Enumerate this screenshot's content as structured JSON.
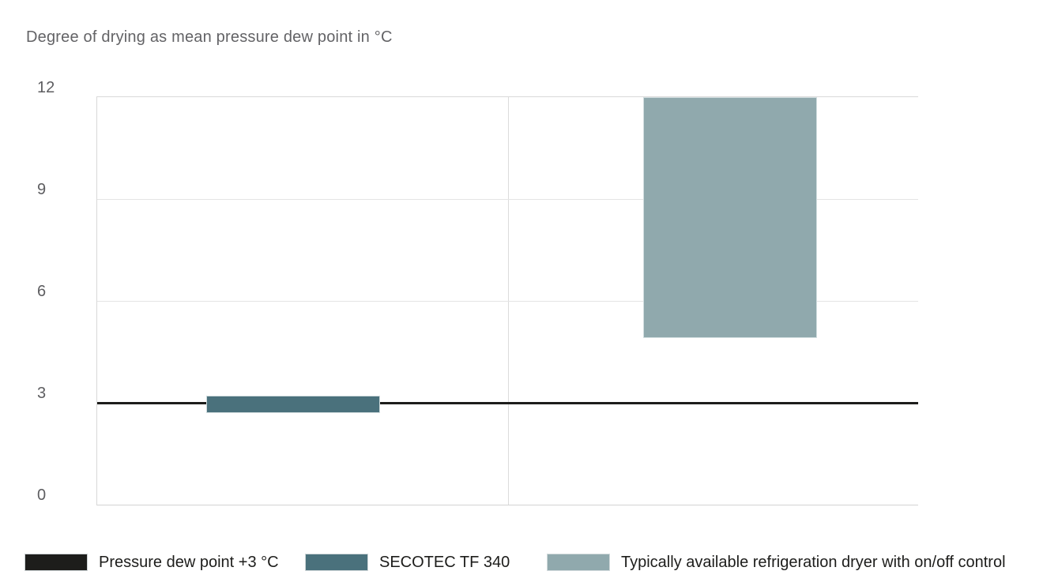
{
  "page": {
    "background": "#ffffff"
  },
  "chart_data": {
    "type": "bar",
    "subtype": "floating-range-bars-with-reference-line",
    "title": "Degree of drying as mean pressure dew point in °C",
    "xlabel": "",
    "ylabel": "mean pressure dew point in °C",
    "ylim": [
      0,
      12
    ],
    "yticks": [
      12,
      9,
      6,
      3,
      0
    ],
    "gridlines_at": [
      9,
      6,
      3
    ],
    "grid": true,
    "categories": [
      "SECOTEC TF 340",
      "Typically available refrigeration dryer with on/off control"
    ],
    "reference_line": {
      "label": "Pressure dew point +3 °C",
      "value": 3,
      "color": "#1d1d1b"
    },
    "series": [
      {
        "name": "SECOTEC TF 340",
        "column": 1,
        "low": 2.7,
        "high": 3.2,
        "color": "#4a717c"
      },
      {
        "name": "Typically available refrigeration dryer with on/off control",
        "column": 2,
        "low": 4.9,
        "high": 12,
        "color": "#90a9ad"
      }
    ],
    "legend": {
      "position": "bottom",
      "entries": [
        {
          "label": "Pressure dew point +3 °C",
          "color": "#1d1d1b"
        },
        {
          "label": "SECOTEC TF 340",
          "color": "#4a717c"
        },
        {
          "label": "Typically available refrigeration dryer with on/off control",
          "color": "#90a9ad"
        }
      ]
    }
  }
}
